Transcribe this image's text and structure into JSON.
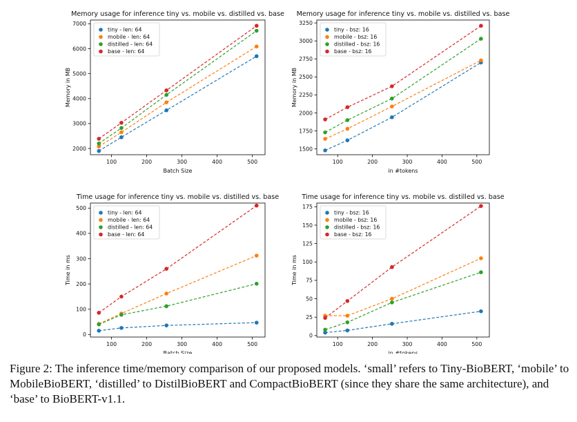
{
  "colors": {
    "tiny": "#1f77b4",
    "mobile": "#ff7f0e",
    "distilled": "#2ca02c",
    "base": "#d62728"
  },
  "caption": "Figure 2: The inference time/memory comparison of our proposed models. ‘small’ refers to Tiny-BioBERT, ‘mobile’ to MobileBioBERT, ‘distilled’ to DistilBioBERT and CompactBioBERT (since they share the same architecture), and ‘base’ to BioBERT-v1.1.",
  "chart_data": [
    {
      "type": "line",
      "title": "Memory usage for inference tiny vs. mobile vs. distilled vs. base",
      "xlabel": "Batch Size",
      "ylabel": "Memory in MB",
      "xlim": [
        40,
        536
      ],
      "ylim": [
        1750,
        7150
      ],
      "xticks": [
        100,
        200,
        300,
        400,
        500
      ],
      "yticks": [
        2000,
        3000,
        4000,
        5000,
        6000,
        7000
      ],
      "legend": "top-left",
      "x": [
        64,
        128,
        256,
        512
      ],
      "series": [
        {
          "name": "tiny - len: 64",
          "key": "tiny",
          "values": [
            1900,
            2450,
            3530,
            5700
          ]
        },
        {
          "name": "mobile - len: 64",
          "key": "mobile",
          "values": [
            2080,
            2650,
            3850,
            6090
          ]
        },
        {
          "name": "distilled - len: 64",
          "key": "distilled",
          "values": [
            2200,
            2820,
            4150,
            6720
          ]
        },
        {
          "name": "base - len: 64",
          "key": "base",
          "values": [
            2390,
            3030,
            4330,
            6920
          ]
        }
      ]
    },
    {
      "type": "line",
      "title": "Memory usage for inference tiny vs. mobile vs. distilled vs. base",
      "xlabel": "in #tokens",
      "ylabel": "Memory in MB",
      "xlim": [
        40,
        536
      ],
      "ylim": [
        1420,
        3290
      ],
      "xticks": [
        100,
        200,
        300,
        400,
        500
      ],
      "yticks": [
        1500,
        1750,
        2000,
        2250,
        2500,
        2750,
        3000,
        3250
      ],
      "legend": "top-left",
      "x": [
        64,
        128,
        256,
        512
      ],
      "series": [
        {
          "name": "tiny - bsz: 16",
          "key": "tiny",
          "values": [
            1480,
            1620,
            1940,
            2700
          ]
        },
        {
          "name": "mobile - bsz: 16",
          "key": "mobile",
          "values": [
            1640,
            1780,
            2090,
            2730
          ]
        },
        {
          "name": "distilled - bsz: 16",
          "key": "distilled",
          "values": [
            1730,
            1900,
            2200,
            3030
          ]
        },
        {
          "name": "base - bsz: 16",
          "key": "base",
          "values": [
            1910,
            2080,
            2370,
            3210
          ]
        }
      ]
    },
    {
      "type": "line",
      "title": "Time usage for inference tiny vs. mobile vs. distilled vs. base",
      "xlabel": "Batch Size",
      "ylabel": "Time in ms",
      "xlim": [
        40,
        536
      ],
      "ylim": [
        -10,
        520
      ],
      "xticks": [
        100,
        200,
        300,
        400,
        500
      ],
      "yticks": [
        0,
        100,
        200,
        300,
        400,
        500
      ],
      "legend": "top-left",
      "x": [
        64,
        128,
        256,
        512
      ],
      "series": [
        {
          "name": "tiny - len: 64",
          "key": "tiny",
          "values": [
            15,
            26,
            36,
            47
          ]
        },
        {
          "name": "mobile - len: 64",
          "key": "mobile",
          "values": [
            42,
            83,
            162,
            312
          ]
        },
        {
          "name": "distilled - len: 64",
          "key": "distilled",
          "values": [
            40,
            78,
            112,
            201
          ]
        },
        {
          "name": "base - len: 64",
          "key": "base",
          "values": [
            86,
            150,
            260,
            510
          ]
        }
      ]
    },
    {
      "type": "line",
      "title": "Time usage for inference tiny vs. mobile vs. distilled vs. base",
      "xlabel": "in #tokens",
      "ylabel": "Time in ms",
      "xlim": [
        40,
        536
      ],
      "ylim": [
        -2,
        180
      ],
      "xticks": [
        100,
        200,
        300,
        400,
        500
      ],
      "yticks": [
        0,
        25,
        50,
        75,
        100,
        125,
        150,
        175
      ],
      "legend": "top-left",
      "x": [
        64,
        128,
        256,
        512
      ],
      "series": [
        {
          "name": "tiny - bsz: 16",
          "key": "tiny",
          "values": [
            4,
            7,
            16,
            33
          ]
        },
        {
          "name": "mobile - bsz: 16",
          "key": "mobile",
          "values": [
            27,
            27,
            50,
            105
          ]
        },
        {
          "name": "distilled - bsz: 16",
          "key": "distilled",
          "values": [
            8,
            18,
            45,
            86
          ]
        },
        {
          "name": "base - bsz: 16",
          "key": "base",
          "values": [
            24,
            47,
            93,
            176
          ]
        }
      ]
    }
  ]
}
